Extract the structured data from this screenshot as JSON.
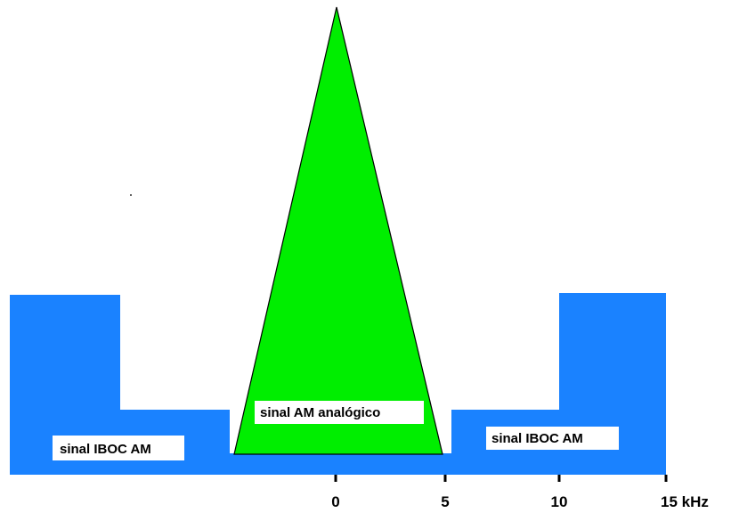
{
  "signal_labels": {
    "left_ibocl": "sinal IBOC AM",
    "center_am": "sinal AM analógico",
    "right_ibocl": "sinal IBOC AM"
  },
  "axis": {
    "ticks": [
      "0",
      "5",
      "10",
      "15 kHz"
    ]
  },
  "colors": {
    "ibocl_blue": "#1a82ff",
    "am_green": "#00ee00",
    "label_bg": "#ffffff",
    "text": "#000000"
  }
}
